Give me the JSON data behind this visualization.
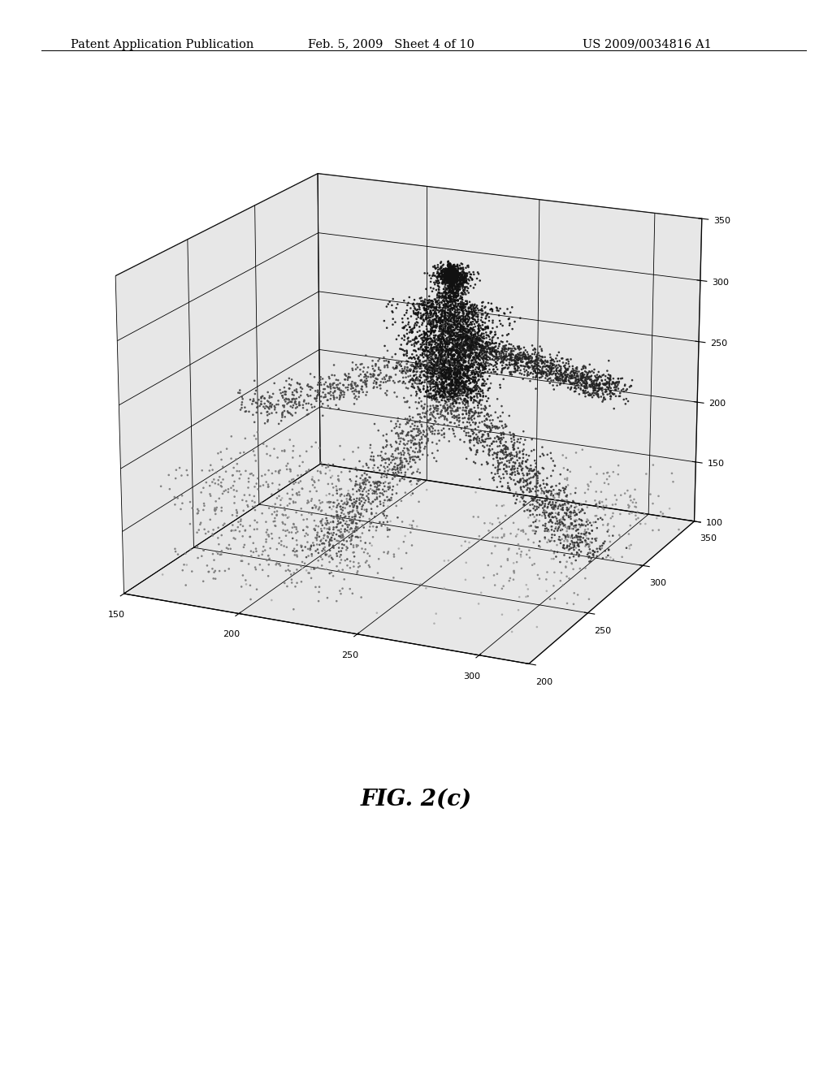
{
  "header_left": "Patent Application Publication",
  "header_center": "Feb. 5, 2009   Sheet 4 of 10",
  "header_right": "US 2009/0034816 A1",
  "caption": "FIG. 2(c)",
  "background_color": "#ffffff",
  "xlim": [
    150,
    320
  ],
  "ylim": [
    200,
    350
  ],
  "zlim": [
    100,
    350
  ],
  "xticks": [
    150,
    200,
    250,
    300
  ],
  "yticks": [
    200,
    250,
    300,
    350
  ],
  "zticks": [
    100,
    150,
    200,
    250,
    300,
    350
  ],
  "seed": 42
}
